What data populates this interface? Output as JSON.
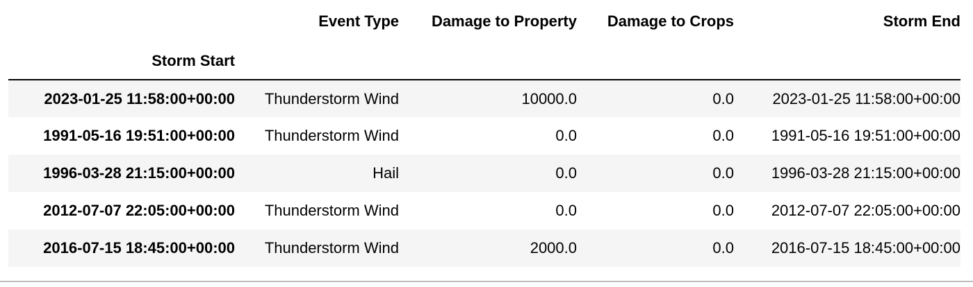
{
  "table": {
    "columns": [
      "Event Type",
      "Damage to Property",
      "Damage to Crops",
      "Storm End"
    ],
    "index_name": "Storm Start",
    "rows": [
      {
        "index": "2023-01-25 11:58:00+00:00",
        "event_type": "Thunderstorm Wind",
        "damage_property": "10000.0",
        "damage_crops": "0.0",
        "storm_end": "2023-01-25 11:58:00+00:00"
      },
      {
        "index": "1991-05-16 19:51:00+00:00",
        "event_type": "Thunderstorm Wind",
        "damage_property": "0.0",
        "damage_crops": "0.0",
        "storm_end": "1991-05-16 19:51:00+00:00"
      },
      {
        "index": "1996-03-28 21:15:00+00:00",
        "event_type": "Hail",
        "damage_property": "0.0",
        "damage_crops": "0.0",
        "storm_end": "1996-03-28 21:15:00+00:00"
      },
      {
        "index": "2012-07-07 22:05:00+00:00",
        "event_type": "Thunderstorm Wind",
        "damage_property": "0.0",
        "damage_crops": "0.0",
        "storm_end": "2012-07-07 22:05:00+00:00"
      },
      {
        "index": "2016-07-15 18:45:00+00:00",
        "event_type": "Thunderstorm Wind",
        "damage_property": "2000.0",
        "damage_crops": "0.0",
        "storm_end": "2016-07-15 18:45:00+00:00"
      }
    ]
  },
  "colors": {
    "row_stripe": "#f5f5f5",
    "header_rule": "#000000",
    "bottom_rule": "#bdbdbd"
  }
}
